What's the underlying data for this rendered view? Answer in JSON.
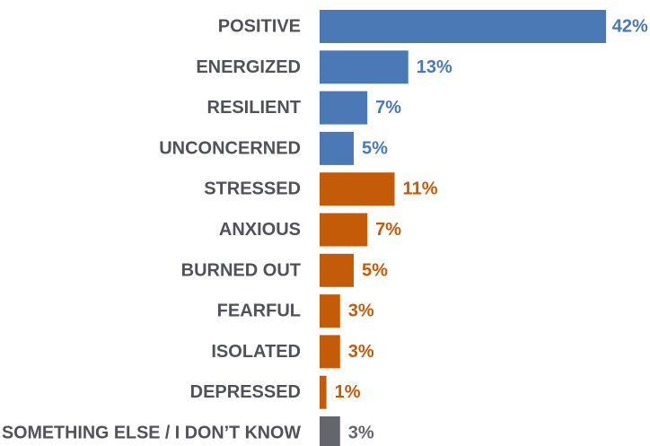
{
  "chart_data": {
    "type": "bar",
    "orientation": "horizontal",
    "categories": [
      "POSITIVE",
      "ENERGIZED",
      "RESILIENT",
      "UNCONCERNED",
      "STRESSED",
      "ANXIOUS",
      "BURNED OUT",
      "FEARFUL",
      "ISOLATED",
      "DEPRESSED",
      "SOMETHING ELSE / I DON’T KNOW"
    ],
    "values": [
      42,
      13,
      7,
      5,
      11,
      7,
      5,
      3,
      3,
      1,
      3
    ],
    "value_labels": [
      "42%",
      "13%",
      "7%",
      "5%",
      "11%",
      "7%",
      "5%",
      "3%",
      "3%",
      "1%",
      "3%"
    ],
    "groups": [
      "positive",
      "positive",
      "positive",
      "positive",
      "negative",
      "negative",
      "negative",
      "negative",
      "negative",
      "negative",
      "other"
    ],
    "unit": "%",
    "xlim": [
      0,
      42
    ],
    "grid": false,
    "legend": "none"
  },
  "colors": {
    "positive": "#4a79b5",
    "negative": "#c45b09",
    "other": "#65666b",
    "category_text": "#505257"
  }
}
